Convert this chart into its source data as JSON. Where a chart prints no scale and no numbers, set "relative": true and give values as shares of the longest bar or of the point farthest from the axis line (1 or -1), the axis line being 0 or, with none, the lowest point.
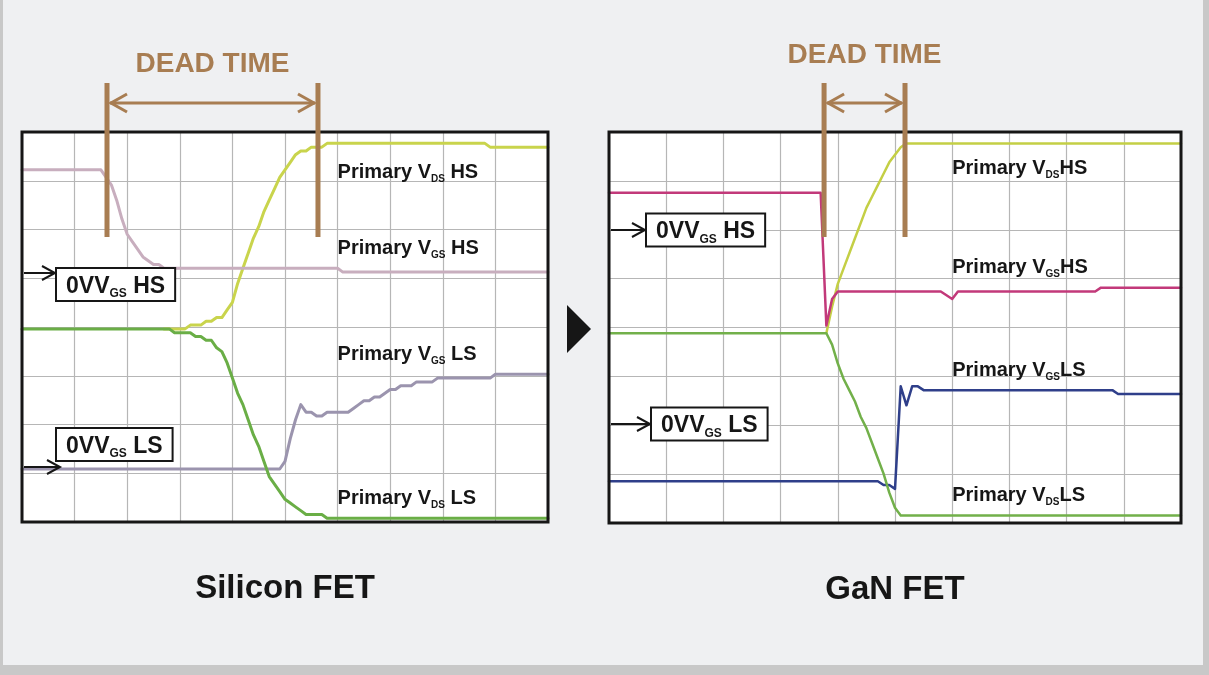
{
  "chart_data": [
    {
      "type": "line",
      "title": "Silicon FET",
      "relative": true,
      "grid": true,
      "categories": [
        null,
        null,
        null,
        null,
        null,
        null,
        null,
        null,
        null,
        null,
        null,
        null,
        null,
        null,
        null,
        null,
        null,
        null,
        null,
        null,
        null,
        null,
        null,
        null,
        null,
        null,
        null,
        null,
        null,
        null,
        null,
        null,
        null,
        null,
        null,
        null,
        null,
        null,
        null,
        null,
        null,
        null,
        null,
        null,
        null,
        null,
        null,
        null,
        null,
        null,
        null,
        null,
        null,
        null,
        null,
        null,
        null,
        null,
        null,
        null,
        null,
        null,
        null,
        null,
        null,
        null,
        null,
        null,
        null,
        null,
        null,
        null,
        null,
        null,
        null,
        null,
        null,
        null,
        null,
        null,
        null,
        null,
        null,
        null,
        null,
        null,
        null,
        null,
        null,
        null,
        null,
        null,
        null,
        null,
        null,
        null,
        null,
        null,
        null,
        null,
        null
      ],
      "series": [
        {
          "name": "Primary V$_{DS}$ HS",
          "color": "#c9d44c",
          "values": [
            null,
            null,
            null,
            null,
            null,
            null,
            null,
            null,
            null,
            null,
            null,
            null,
            null,
            null,
            null,
            null,
            null,
            null,
            null,
            null,
            null,
            null,
            null,
            null,
            null,
            null,
            null,
            0.51,
            0.51,
            0.51,
            0.51,
            0.51,
            0.52,
            0.52,
            0.52,
            0.53,
            0.53,
            0.54,
            0.54,
            0.56,
            0.58,
            0.63,
            0.67,
            0.71,
            0.75,
            0.78,
            0.82,
            0.85,
            0.88,
            0.91,
            0.93,
            0.95,
            0.97,
            0.98,
            0.98,
            0.99,
            0.99,
            0.99,
            1,
            1,
            1,
            1,
            1,
            1,
            1,
            1,
            1,
            1,
            1,
            1,
            1,
            1,
            1,
            1,
            1,
            1,
            1,
            1,
            1,
            1,
            1,
            1,
            1,
            1,
            1,
            1,
            1,
            1,
            1,
            0.99,
            0.99,
            0.99,
            0.99,
            0.99,
            0.99,
            0.99,
            0.99,
            0.99,
            0.99,
            0.99,
            0.99
          ]
        },
        {
          "name": "Primary V$_{GS}$ HS",
          "color": "#c8aebe",
          "values": [
            0.93,
            0.93,
            0.93,
            0.93,
            0.93,
            0.93,
            0.93,
            0.93,
            0.93,
            0.93,
            0.93,
            0.93,
            0.93,
            0.93,
            0.93,
            0.93,
            0.91,
            0.89,
            0.85,
            0.8,
            0.76,
            0.74,
            0.72,
            0.7,
            0.69,
            0.68,
            0.68,
            0.67,
            0.67,
            0.67,
            0.67,
            0.67,
            0.67,
            0.67,
            0.67,
            0.67,
            0.67,
            0.67,
            0.67,
            0.67,
            0.67,
            0.67,
            0.67,
            0.67,
            0.67,
            0.67,
            0.67,
            0.67,
            0.67,
            0.67,
            0.67,
            0.67,
            0.67,
            0.67,
            0.67,
            0.67,
            0.67,
            0.67,
            0.67,
            0.67,
            0.67,
            0.66,
            0.66,
            0.66,
            0.66,
            0.66,
            0.66,
            0.66,
            0.66,
            0.66,
            0.66,
            0.66,
            0.66,
            0.66,
            0.66,
            0.66,
            0.66,
            0.66,
            0.66,
            0.66,
            0.66,
            0.66,
            0.66,
            0.66,
            0.66,
            0.66,
            0.66,
            0.66,
            0.66,
            0.66,
            0.66,
            0.66,
            0.66,
            0.66,
            0.66,
            0.66,
            0.66,
            0.66,
            0.66,
            0.66,
            0.66
          ]
        },
        {
          "name": "Primary V$_{GS}$ LS",
          "color": "#9b94ae",
          "values": [
            0.14,
            0.14,
            0.14,
            0.14,
            0.14,
            0.14,
            0.14,
            0.14,
            0.14,
            0.14,
            0.14,
            0.14,
            0.14,
            0.14,
            0.14,
            0.14,
            0.14,
            0.14,
            0.14,
            0.14,
            0.14,
            0.14,
            0.14,
            0.14,
            0.14,
            0.14,
            0.14,
            0.14,
            0.14,
            0.14,
            0.14,
            0.14,
            0.14,
            0.14,
            0.14,
            0.14,
            0.14,
            0.14,
            0.14,
            0.14,
            0.14,
            0.14,
            0.14,
            0.14,
            0.14,
            0.14,
            0.14,
            0.14,
            0.14,
            0.14,
            0.16,
            0.22,
            0.27,
            0.31,
            0.29,
            0.29,
            0.28,
            0.28,
            0.29,
            0.29,
            0.29,
            0.29,
            0.29,
            0.3,
            0.31,
            0.32,
            0.32,
            0.33,
            0.33,
            0.34,
            0.35,
            0.35,
            0.36,
            0.36,
            0.36,
            0.37,
            0.37,
            0.37,
            0.37,
            0.38,
            0.38,
            0.38,
            0.38,
            0.38,
            0.38,
            0.38,
            0.38,
            0.38,
            0.38,
            0.38,
            0.39,
            0.39,
            0.39,
            0.39,
            0.39,
            0.39,
            0.39,
            0.39,
            0.39,
            0.39,
            0.39
          ]
        },
        {
          "name": "Primary V$_{DS}$ LS",
          "color": "#6aae46",
          "values": [
            0.51,
            0.51,
            0.51,
            0.51,
            0.51,
            0.51,
            0.51,
            0.51,
            0.51,
            0.51,
            0.51,
            0.51,
            0.51,
            0.51,
            0.51,
            0.51,
            0.51,
            0.51,
            0.51,
            0.51,
            0.51,
            0.51,
            0.51,
            0.51,
            0.51,
            0.51,
            0.51,
            0.51,
            0.51,
            0.5,
            0.5,
            0.5,
            0.5,
            0.49,
            0.49,
            0.48,
            0.48,
            0.46,
            0.45,
            0.42,
            0.38,
            0.34,
            0.31,
            0.27,
            0.23,
            0.2,
            0.16,
            0.12,
            0.1,
            0.08,
            0.06,
            0.05,
            0.04,
            0.03,
            0.02,
            0.02,
            0.02,
            0.02,
            0.01,
            0.01,
            0.01,
            0.01,
            0.01,
            0.01,
            0.01,
            0.01,
            0.01,
            0.01,
            0.01,
            0.01,
            0.01,
            0.01,
            0.01,
            0.01,
            0.01,
            0.01,
            0.01,
            0.01,
            0.01,
            0.01,
            0.01,
            0.01,
            0.01,
            0.01,
            0.01,
            0.01,
            0.01,
            0.01,
            0.01,
            0.01,
            0.01,
            0.01,
            0.01,
            0.01,
            0.01,
            0.01,
            0.01,
            0.01,
            0.01,
            0.01,
            0.01
          ]
        }
      ],
      "annotations": [
        "DEAD TIME",
        "0VV$_{GS}$ HS",
        "0VV$_{GS}$ LS"
      ]
    },
    {
      "type": "line",
      "title": "GaN FET",
      "relative": true,
      "grid": true,
      "categories": [
        null,
        null,
        null,
        null,
        null,
        null,
        null,
        null,
        null,
        null,
        null,
        null,
        null,
        null,
        null,
        null,
        null,
        null,
        null,
        null,
        null,
        null,
        null,
        null,
        null,
        null,
        null,
        null,
        null,
        null,
        null,
        null,
        null,
        null,
        null,
        null,
        null,
        null,
        null,
        null,
        null,
        null,
        null,
        null,
        null,
        null,
        null,
        null,
        null,
        null,
        null,
        null,
        null,
        null,
        null,
        null,
        null,
        null,
        null,
        null,
        null,
        null,
        null,
        null,
        null,
        null,
        null,
        null,
        null,
        null,
        null,
        null,
        null,
        null,
        null,
        null,
        null,
        null,
        null,
        null,
        null,
        null,
        null,
        null,
        null,
        null,
        null,
        null,
        null,
        null,
        null,
        null,
        null,
        null,
        null,
        null,
        null,
        null,
        null,
        null,
        null
      ],
      "series": [
        {
          "name": "Primary V$_{DS}$HS",
          "color": "#c4cf45",
          "values": [
            null,
            null,
            null,
            null,
            null,
            null,
            null,
            null,
            null,
            null,
            null,
            null,
            null,
            null,
            null,
            null,
            null,
            null,
            null,
            null,
            null,
            null,
            null,
            null,
            null,
            null,
            null,
            null,
            null,
            null,
            null,
            null,
            null,
            null,
            null,
            null,
            null,
            null,
            0.5,
            0.57,
            0.63,
            0.67,
            0.71,
            0.75,
            0.79,
            0.83,
            0.86,
            0.89,
            0.92,
            0.95,
            0.97,
            0.99,
            1,
            1,
            1,
            1,
            1,
            1,
            1,
            1,
            1,
            1,
            1,
            1,
            1,
            1,
            1,
            1,
            1,
            1,
            1,
            1,
            1,
            1,
            1,
            1,
            1,
            1,
            1,
            1,
            1,
            1,
            1,
            1,
            1,
            1,
            1,
            1,
            1,
            1,
            1,
            1,
            1,
            1,
            1,
            1,
            1,
            1,
            1,
            1,
            1
          ]
        },
        {
          "name": "Primary V$_{GS}$HS",
          "color": "#c2397a",
          "values": [
            0.87,
            0.87,
            0.87,
            0.87,
            0.87,
            0.87,
            0.87,
            0.87,
            0.87,
            0.87,
            0.87,
            0.87,
            0.87,
            0.87,
            0.87,
            0.87,
            0.87,
            0.87,
            0.87,
            0.87,
            0.87,
            0.87,
            0.87,
            0.87,
            0.87,
            0.87,
            0.87,
            0.87,
            0.87,
            0.87,
            0.87,
            0.87,
            0.87,
            0.87,
            0.87,
            0.87,
            0.87,
            0.87,
            0.52,
            0.59,
            0.61,
            0.61,
            0.61,
            0.61,
            0.61,
            0.61,
            0.61,
            0.61,
            0.61,
            0.61,
            0.61,
            0.61,
            0.61,
            0.61,
            0.61,
            0.61,
            0.61,
            0.61,
            0.61,
            0.6,
            0.59,
            0.61,
            0.61,
            0.61,
            0.61,
            0.61,
            0.61,
            0.61,
            0.61,
            0.61,
            0.61,
            0.61,
            0.61,
            0.61,
            0.61,
            0.61,
            0.61,
            0.61,
            0.61,
            0.61,
            0.61,
            0.61,
            0.61,
            0.61,
            0.61,
            0.61,
            0.62,
            0.62,
            0.62,
            0.62,
            0.62,
            0.62,
            0.62,
            0.62,
            0.62,
            0.62,
            0.62,
            0.62,
            0.62,
            0.62,
            0.62
          ]
        },
        {
          "name": "Primary V$_{GS}$LS",
          "color": "#2f3f8a",
          "values": [
            0.11,
            0.11,
            0.11,
            0.11,
            0.11,
            0.11,
            0.11,
            0.11,
            0.11,
            0.11,
            0.11,
            0.11,
            0.11,
            0.11,
            0.11,
            0.11,
            0.11,
            0.11,
            0.11,
            0.11,
            0.11,
            0.11,
            0.11,
            0.11,
            0.11,
            0.11,
            0.11,
            0.11,
            0.11,
            0.11,
            0.11,
            0.11,
            0.11,
            0.11,
            0.11,
            0.11,
            0.11,
            0.11,
            0.11,
            0.11,
            0.11,
            0.11,
            0.11,
            0.11,
            0.11,
            0.11,
            0.11,
            0.11,
            0.1,
            0.1,
            0.09,
            0.36,
            0.31,
            0.36,
            0.36,
            0.35,
            0.35,
            0.35,
            0.35,
            0.35,
            0.35,
            0.35,
            0.35,
            0.35,
            0.35,
            0.35,
            0.35,
            0.35,
            0.35,
            0.35,
            0.35,
            0.35,
            0.35,
            0.35,
            0.35,
            0.35,
            0.35,
            0.35,
            0.35,
            0.35,
            0.35,
            0.35,
            0.35,
            0.35,
            0.35,
            0.35,
            0.35,
            0.35,
            0.35,
            0.34,
            0.34,
            0.34,
            0.34,
            0.34,
            0.34,
            0.34,
            0.34,
            0.34,
            0.34,
            0.34,
            0.34
          ]
        },
        {
          "name": "Primary V$_{DS}$LS",
          "color": "#72b04a",
          "values": [
            0.5,
            0.5,
            0.5,
            0.5,
            0.5,
            0.5,
            0.5,
            0.5,
            0.5,
            0.5,
            0.5,
            0.5,
            0.5,
            0.5,
            0.5,
            0.5,
            0.5,
            0.5,
            0.5,
            0.5,
            0.5,
            0.5,
            0.5,
            0.5,
            0.5,
            0.5,
            0.5,
            0.5,
            0.5,
            0.5,
            0.5,
            0.5,
            0.5,
            0.5,
            0.5,
            0.5,
            0.5,
            0.5,
            0.5,
            0.47,
            0.42,
            0.38,
            0.35,
            0.32,
            0.28,
            0.25,
            0.21,
            0.17,
            0.13,
            0.08,
            0.04,
            0.02,
            0.02,
            0.02,
            0.02,
            0.02,
            0.02,
            0.02,
            0.02,
            0.02,
            0.02,
            0.02,
            0.02,
            0.02,
            0.02,
            0.02,
            0.02,
            0.02,
            0.02,
            0.02,
            0.02,
            0.02,
            0.02,
            0.02,
            0.02,
            0.02,
            0.02,
            0.02,
            0.02,
            0.02,
            0.02,
            0.02,
            0.02,
            0.02,
            0.02,
            0.02,
            0.02,
            0.02,
            0.02,
            0.02,
            0.02,
            0.02,
            0.02,
            0.02,
            0.02,
            0.02,
            0.02,
            0.02,
            0.02,
            0.02,
            0.02
          ]
        }
      ],
      "annotations": [
        "DEAD TIME",
        "0VV$_{GS}$ HS",
        "0VV$_{GS}$ LS"
      ]
    }
  ]
}
